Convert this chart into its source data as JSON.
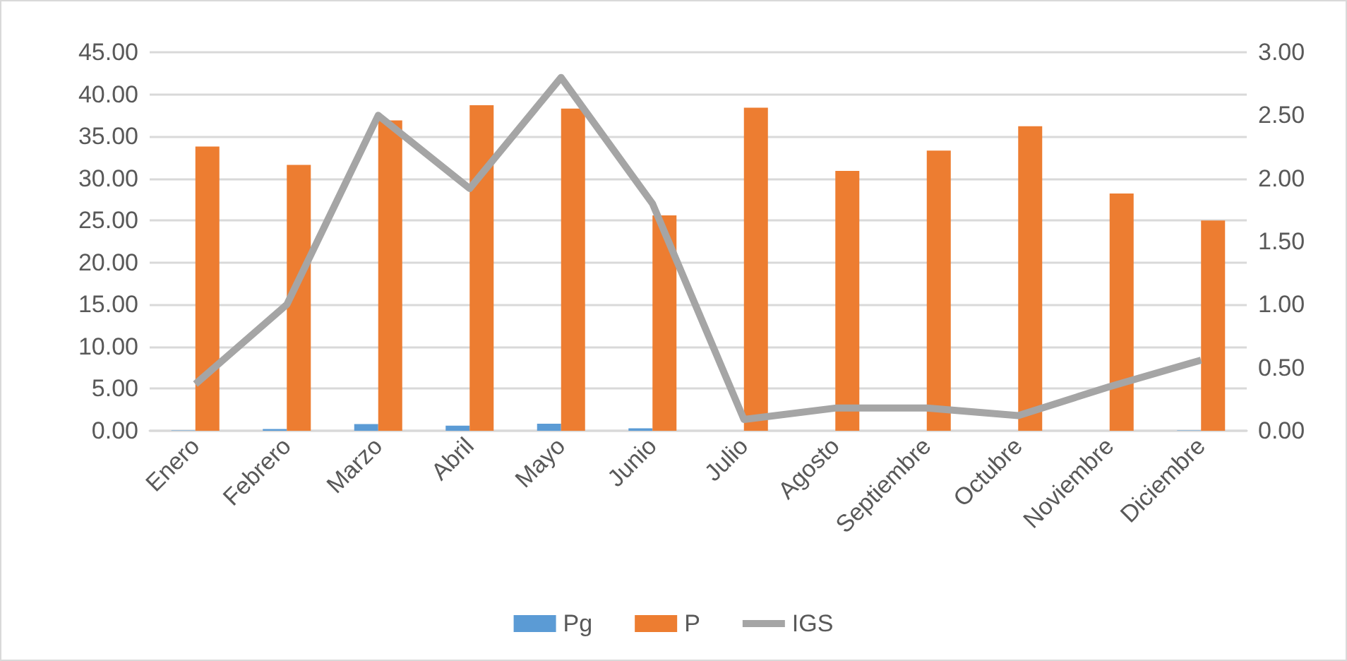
{
  "chart_data": {
    "type": "bar",
    "categories": [
      "Enero",
      "Febrero",
      "Marzo",
      "Abril",
      "Mayo",
      "Junio",
      "Julio",
      "Agosto",
      "Septiembre",
      "Octubre",
      "Noviembre",
      "Diciembre"
    ],
    "series": [
      {
        "name": "Pg",
        "color": "#5b9bd5",
        "values": [
          0.05,
          0.2,
          0.8,
          0.6,
          0.85,
          0.3,
          0,
          0,
          0,
          0,
          0,
          0.05
        ]
      },
      {
        "name": "P",
        "color": "#ed7d31",
        "values": [
          33.8,
          31.6,
          36.9,
          38.7,
          38.3,
          25.6,
          38.4,
          30.9,
          33.3,
          36.2,
          28.2,
          25.0
        ]
      },
      {
        "name": "IGS",
        "type": "line",
        "axis": "y2",
        "color": "#a5a5a5",
        "values": [
          0.37,
          1.0,
          2.5,
          1.92,
          2.8,
          1.8,
          0.09,
          0.18,
          0.18,
          0.12,
          0.35,
          0.56
        ]
      }
    ],
    "ylim": [
      0,
      45
    ],
    "yticks": [
      {
        "value": 0,
        "label": "0.00"
      },
      {
        "value": 5,
        "label": "5.00"
      },
      {
        "value": 10,
        "label": "10.00"
      },
      {
        "value": 15,
        "label": "15.00"
      },
      {
        "value": 20,
        "label": "20.00"
      },
      {
        "value": 25,
        "label": "25.00"
      },
      {
        "value": 30,
        "label": "30.00"
      },
      {
        "value": 35,
        "label": "35.00"
      },
      {
        "value": 40,
        "label": "40.00"
      },
      {
        "value": 45,
        "label": "45.00"
      }
    ],
    "y2lim": [
      0,
      3
    ],
    "y2ticks": [
      {
        "value": 0,
        "label": "0.00"
      },
      {
        "value": 0.5,
        "label": "0.50"
      },
      {
        "value": 1,
        "label": "1.00"
      },
      {
        "value": 1.5,
        "label": "1.50"
      },
      {
        "value": 2,
        "label": "2.00"
      },
      {
        "value": 2.5,
        "label": "2.50"
      },
      {
        "value": 3,
        "label": "3.00"
      }
    ],
    "grid": "y",
    "legend": "bottom",
    "marker": "none"
  }
}
